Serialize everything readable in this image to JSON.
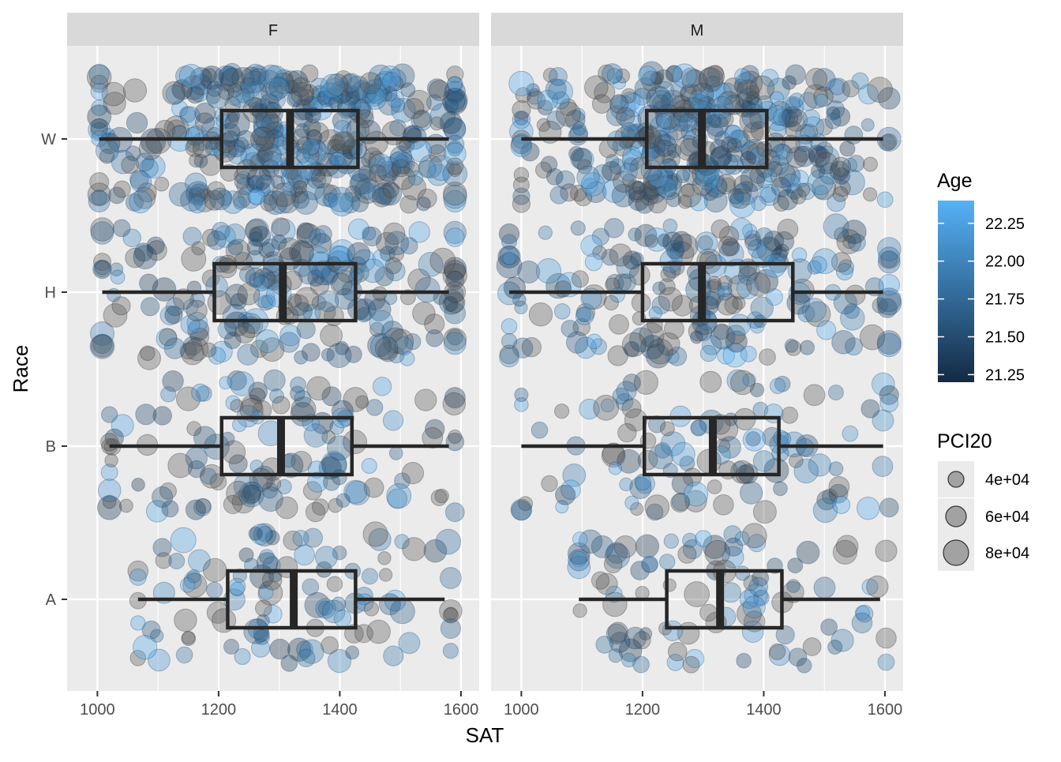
{
  "chart_data": {
    "type": "boxplot",
    "xlabel": "SAT",
    "ylabel": "Race",
    "x_ticks": [
      1000,
      1200,
      1400,
      1600
    ],
    "xlim": [
      950,
      1630
    ],
    "y_categories": [
      "A",
      "B",
      "H",
      "W"
    ],
    "facets": [
      "F",
      "M"
    ],
    "boxes": [
      {
        "panel": "F",
        "race": "W",
        "whisker_low": 1003,
        "q1": 1205,
        "median": 1318,
        "q3": 1430,
        "whisker_high": 1580
      },
      {
        "panel": "F",
        "race": "H",
        "whisker_low": 1008,
        "q1": 1193,
        "median": 1306,
        "q3": 1426,
        "whisker_high": 1580
      },
      {
        "panel": "F",
        "race": "B",
        "whisker_low": 1020,
        "q1": 1205,
        "median": 1303,
        "q3": 1420,
        "whisker_high": 1580
      },
      {
        "panel": "F",
        "race": "A",
        "whisker_low": 1067,
        "q1": 1215,
        "median": 1324,
        "q3": 1426,
        "whisker_high": 1573
      },
      {
        "panel": "M",
        "race": "W",
        "whisker_low": 1000,
        "q1": 1207,
        "median": 1298,
        "q3": 1405,
        "whisker_high": 1597
      },
      {
        "panel": "M",
        "race": "H",
        "whisker_low": 980,
        "q1": 1200,
        "median": 1298,
        "q3": 1448,
        "whisker_high": 1597
      },
      {
        "panel": "M",
        "race": "B",
        "whisker_low": 1000,
        "q1": 1203,
        "median": 1316,
        "q3": 1425,
        "whisker_high": 1597
      },
      {
        "panel": "M",
        "race": "A",
        "whisker_low": 1095,
        "q1": 1240,
        "median": 1328,
        "q3": 1430,
        "whisker_high": 1592
      }
    ],
    "points_note_counts": {
      "W": 420,
      "H": 230,
      "B": 130,
      "A": 110
    },
    "legend_age": {
      "title": "Age",
      "ticks": [
        "22.25",
        "22.00",
        "21.75",
        "21.50",
        "21.25"
      ],
      "tick_values": [
        22.25,
        22.0,
        21.75,
        21.5,
        21.25
      ],
      "range": [
        21.2,
        22.4
      ],
      "color_low": "#132B43",
      "color_high": "#56B1F7"
    },
    "legend_size": {
      "title": "PCI20",
      "labels": [
        "4e+04",
        "6e+04",
        "8e+04"
      ]
    },
    "colors": {
      "panel_bg": "#EBEBEB",
      "strip_bg": "#D9D9D9",
      "grid": "#FFFFFF",
      "box_line": "#262626",
      "point_gray": "#595959"
    }
  }
}
